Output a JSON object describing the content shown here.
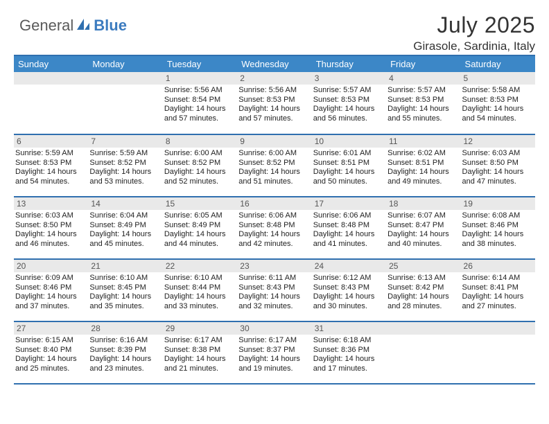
{
  "logo": {
    "text1": "General",
    "text2": "Blue"
  },
  "title": "July 2025",
  "location": "Girasole, Sardinia, Italy",
  "colors": {
    "header_bg": "#3c87c7",
    "border": "#2f6faf",
    "daynum_bg": "#e9e9e9",
    "logo_gray": "#5a5a5a",
    "logo_blue": "#3b7bbf",
    "text": "#222222"
  },
  "weekdays": [
    "Sunday",
    "Monday",
    "Tuesday",
    "Wednesday",
    "Thursday",
    "Friday",
    "Saturday"
  ],
  "weeks": [
    [
      {
        "empty": true
      },
      {
        "empty": true
      },
      {
        "day": "1",
        "sunrise": "Sunrise: 5:56 AM",
        "sunset": "Sunset: 8:54 PM",
        "dl1": "Daylight: 14 hours",
        "dl2": "and 57 minutes."
      },
      {
        "day": "2",
        "sunrise": "Sunrise: 5:56 AM",
        "sunset": "Sunset: 8:53 PM",
        "dl1": "Daylight: 14 hours",
        "dl2": "and 57 minutes."
      },
      {
        "day": "3",
        "sunrise": "Sunrise: 5:57 AM",
        "sunset": "Sunset: 8:53 PM",
        "dl1": "Daylight: 14 hours",
        "dl2": "and 56 minutes."
      },
      {
        "day": "4",
        "sunrise": "Sunrise: 5:57 AM",
        "sunset": "Sunset: 8:53 PM",
        "dl1": "Daylight: 14 hours",
        "dl2": "and 55 minutes."
      },
      {
        "day": "5",
        "sunrise": "Sunrise: 5:58 AM",
        "sunset": "Sunset: 8:53 PM",
        "dl1": "Daylight: 14 hours",
        "dl2": "and 54 minutes."
      }
    ],
    [
      {
        "day": "6",
        "sunrise": "Sunrise: 5:59 AM",
        "sunset": "Sunset: 8:53 PM",
        "dl1": "Daylight: 14 hours",
        "dl2": "and 54 minutes."
      },
      {
        "day": "7",
        "sunrise": "Sunrise: 5:59 AM",
        "sunset": "Sunset: 8:52 PM",
        "dl1": "Daylight: 14 hours",
        "dl2": "and 53 minutes."
      },
      {
        "day": "8",
        "sunrise": "Sunrise: 6:00 AM",
        "sunset": "Sunset: 8:52 PM",
        "dl1": "Daylight: 14 hours",
        "dl2": "and 52 minutes."
      },
      {
        "day": "9",
        "sunrise": "Sunrise: 6:00 AM",
        "sunset": "Sunset: 8:52 PM",
        "dl1": "Daylight: 14 hours",
        "dl2": "and 51 minutes."
      },
      {
        "day": "10",
        "sunrise": "Sunrise: 6:01 AM",
        "sunset": "Sunset: 8:51 PM",
        "dl1": "Daylight: 14 hours",
        "dl2": "and 50 minutes."
      },
      {
        "day": "11",
        "sunrise": "Sunrise: 6:02 AM",
        "sunset": "Sunset: 8:51 PM",
        "dl1": "Daylight: 14 hours",
        "dl2": "and 49 minutes."
      },
      {
        "day": "12",
        "sunrise": "Sunrise: 6:03 AM",
        "sunset": "Sunset: 8:50 PM",
        "dl1": "Daylight: 14 hours",
        "dl2": "and 47 minutes."
      }
    ],
    [
      {
        "day": "13",
        "sunrise": "Sunrise: 6:03 AM",
        "sunset": "Sunset: 8:50 PM",
        "dl1": "Daylight: 14 hours",
        "dl2": "and 46 minutes."
      },
      {
        "day": "14",
        "sunrise": "Sunrise: 6:04 AM",
        "sunset": "Sunset: 8:49 PM",
        "dl1": "Daylight: 14 hours",
        "dl2": "and 45 minutes."
      },
      {
        "day": "15",
        "sunrise": "Sunrise: 6:05 AM",
        "sunset": "Sunset: 8:49 PM",
        "dl1": "Daylight: 14 hours",
        "dl2": "and 44 minutes."
      },
      {
        "day": "16",
        "sunrise": "Sunrise: 6:06 AM",
        "sunset": "Sunset: 8:48 PM",
        "dl1": "Daylight: 14 hours",
        "dl2": "and 42 minutes."
      },
      {
        "day": "17",
        "sunrise": "Sunrise: 6:06 AM",
        "sunset": "Sunset: 8:48 PM",
        "dl1": "Daylight: 14 hours",
        "dl2": "and 41 minutes."
      },
      {
        "day": "18",
        "sunrise": "Sunrise: 6:07 AM",
        "sunset": "Sunset: 8:47 PM",
        "dl1": "Daylight: 14 hours",
        "dl2": "and 40 minutes."
      },
      {
        "day": "19",
        "sunrise": "Sunrise: 6:08 AM",
        "sunset": "Sunset: 8:46 PM",
        "dl1": "Daylight: 14 hours",
        "dl2": "and 38 minutes."
      }
    ],
    [
      {
        "day": "20",
        "sunrise": "Sunrise: 6:09 AM",
        "sunset": "Sunset: 8:46 PM",
        "dl1": "Daylight: 14 hours",
        "dl2": "and 37 minutes."
      },
      {
        "day": "21",
        "sunrise": "Sunrise: 6:10 AM",
        "sunset": "Sunset: 8:45 PM",
        "dl1": "Daylight: 14 hours",
        "dl2": "and 35 minutes."
      },
      {
        "day": "22",
        "sunrise": "Sunrise: 6:10 AM",
        "sunset": "Sunset: 8:44 PM",
        "dl1": "Daylight: 14 hours",
        "dl2": "and 33 minutes."
      },
      {
        "day": "23",
        "sunrise": "Sunrise: 6:11 AM",
        "sunset": "Sunset: 8:43 PM",
        "dl1": "Daylight: 14 hours",
        "dl2": "and 32 minutes."
      },
      {
        "day": "24",
        "sunrise": "Sunrise: 6:12 AM",
        "sunset": "Sunset: 8:43 PM",
        "dl1": "Daylight: 14 hours",
        "dl2": "and 30 minutes."
      },
      {
        "day": "25",
        "sunrise": "Sunrise: 6:13 AM",
        "sunset": "Sunset: 8:42 PM",
        "dl1": "Daylight: 14 hours",
        "dl2": "and 28 minutes."
      },
      {
        "day": "26",
        "sunrise": "Sunrise: 6:14 AM",
        "sunset": "Sunset: 8:41 PM",
        "dl1": "Daylight: 14 hours",
        "dl2": "and 27 minutes."
      }
    ],
    [
      {
        "day": "27",
        "sunrise": "Sunrise: 6:15 AM",
        "sunset": "Sunset: 8:40 PM",
        "dl1": "Daylight: 14 hours",
        "dl2": "and 25 minutes."
      },
      {
        "day": "28",
        "sunrise": "Sunrise: 6:16 AM",
        "sunset": "Sunset: 8:39 PM",
        "dl1": "Daylight: 14 hours",
        "dl2": "and 23 minutes."
      },
      {
        "day": "29",
        "sunrise": "Sunrise: 6:17 AM",
        "sunset": "Sunset: 8:38 PM",
        "dl1": "Daylight: 14 hours",
        "dl2": "and 21 minutes."
      },
      {
        "day": "30",
        "sunrise": "Sunrise: 6:17 AM",
        "sunset": "Sunset: 8:37 PM",
        "dl1": "Daylight: 14 hours",
        "dl2": "and 19 minutes."
      },
      {
        "day": "31",
        "sunrise": "Sunrise: 6:18 AM",
        "sunset": "Sunset: 8:36 PM",
        "dl1": "Daylight: 14 hours",
        "dl2": "and 17 minutes."
      },
      {
        "empty": true
      },
      {
        "empty": true
      }
    ]
  ]
}
